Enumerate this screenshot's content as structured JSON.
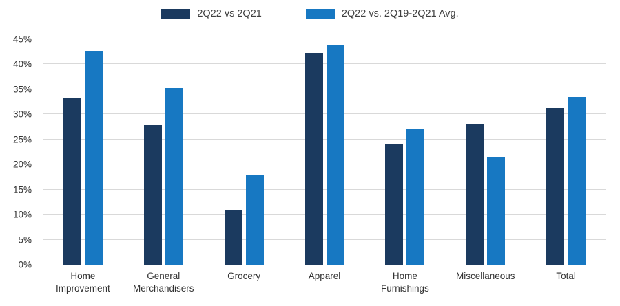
{
  "chart_data": {
    "type": "bar",
    "title": "",
    "categories": [
      "Home Improvement",
      "General Merchandisers",
      "Grocery",
      "Apparel",
      "Home Furnishings",
      "Miscellaneous",
      "Total"
    ],
    "series": [
      {
        "name": "2Q22 vs 2Q21",
        "color": "#1b3a5f",
        "values": [
          33.4,
          27.9,
          10.8,
          42.2,
          24.2,
          28.1,
          31.3
        ]
      },
      {
        "name": "2Q22 vs. 2Q19-2Q21 Avg.",
        "color": "#1778c2",
        "values": [
          42.7,
          35.2,
          17.9,
          43.8,
          27.1,
          21.4,
          33.5
        ]
      }
    ],
    "xlabel": "",
    "ylabel": "",
    "ylim": [
      0,
      45
    ],
    "ytick_step": 5,
    "ytick_suffix": "%",
    "grid": true,
    "legend_position": "top"
  }
}
